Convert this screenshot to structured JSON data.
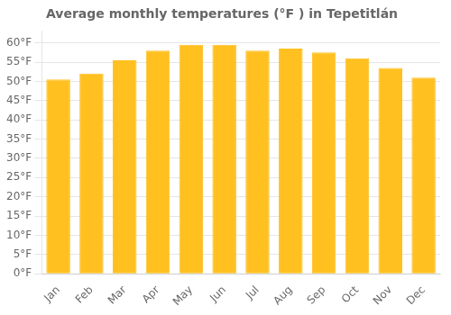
{
  "chart_data": {
    "type": "bar",
    "title": "Average monthly temperatures (°F ) in Tepetitlán",
    "categories": [
      "Jan",
      "Feb",
      "Mar",
      "Apr",
      "May",
      "Jun",
      "Jul",
      "Aug",
      "Sep",
      "Oct",
      "Nov",
      "Dec"
    ],
    "values": [
      50.5,
      52.0,
      55.5,
      58.0,
      59.5,
      59.5,
      58.0,
      58.5,
      57.5,
      56.0,
      53.5,
      51.0
    ],
    "color": "#FFC020",
    "ylim": [
      0,
      63
    ],
    "yticks": [
      {
        "value": 0,
        "label": "0°F"
      },
      {
        "value": 5,
        "label": "5°F"
      },
      {
        "value": 10,
        "label": "10°F"
      },
      {
        "value": 15,
        "label": "15°F"
      },
      {
        "value": 20,
        "label": "20°F"
      },
      {
        "value": 25,
        "label": "25°F"
      },
      {
        "value": 30,
        "label": "30°F"
      },
      {
        "value": 35,
        "label": "35°F"
      },
      {
        "value": 40,
        "label": "40°F"
      },
      {
        "value": 45,
        "label": "45°F"
      },
      {
        "value": 50,
        "label": "50°F"
      },
      {
        "value": 55,
        "label": "55°F"
      },
      {
        "value": 60,
        "label": "60°F"
      }
    ],
    "grid": true
  }
}
